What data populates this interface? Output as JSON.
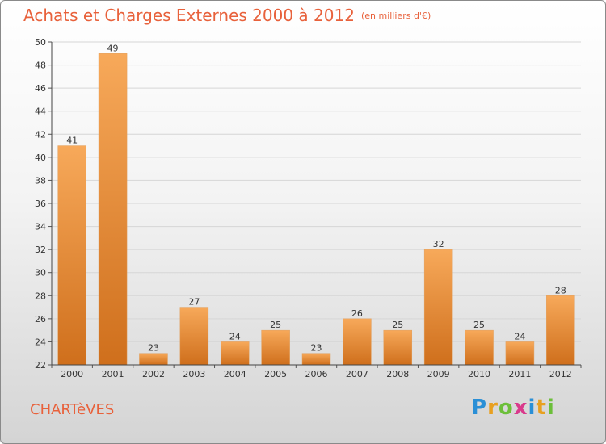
{
  "header": {
    "title": "Achats et Charges Externes 2000 à 2012",
    "unit": "(en milliers d'€)"
  },
  "footer": {
    "city": "CHARTèVES",
    "logo": [
      "P",
      "r",
      "o",
      "x",
      "i",
      "t",
      "i"
    ],
    "logo_colors": [
      "#2a8fd6",
      "#e8a020",
      "#6cbf3a",
      "#d93a8c",
      "#2a8fd6",
      "#e8a020",
      "#6cbf3a"
    ]
  },
  "colors": {
    "bar_top": "#f7a95a",
    "bar_bottom": "#cf6f1c",
    "accent": "#e8613b",
    "grid": "#d6d6d6"
  },
  "chart_data": {
    "type": "bar",
    "title": "Achats et Charges Externes 2000 à 2012",
    "subtitle": "(en milliers d'€)",
    "categories": [
      "2000",
      "2001",
      "2002",
      "2003",
      "2004",
      "2005",
      "2006",
      "2007",
      "2008",
      "2009",
      "2010",
      "2011",
      "2012"
    ],
    "values": [
      41,
      49,
      23,
      27,
      24,
      25,
      23,
      26,
      25,
      32,
      25,
      24,
      28
    ],
    "ylim": [
      22,
      50
    ],
    "yticks": [
      22,
      24,
      26,
      28,
      30,
      32,
      34,
      36,
      38,
      40,
      42,
      44,
      46,
      48,
      50
    ],
    "grid": true,
    "legend": "none"
  }
}
